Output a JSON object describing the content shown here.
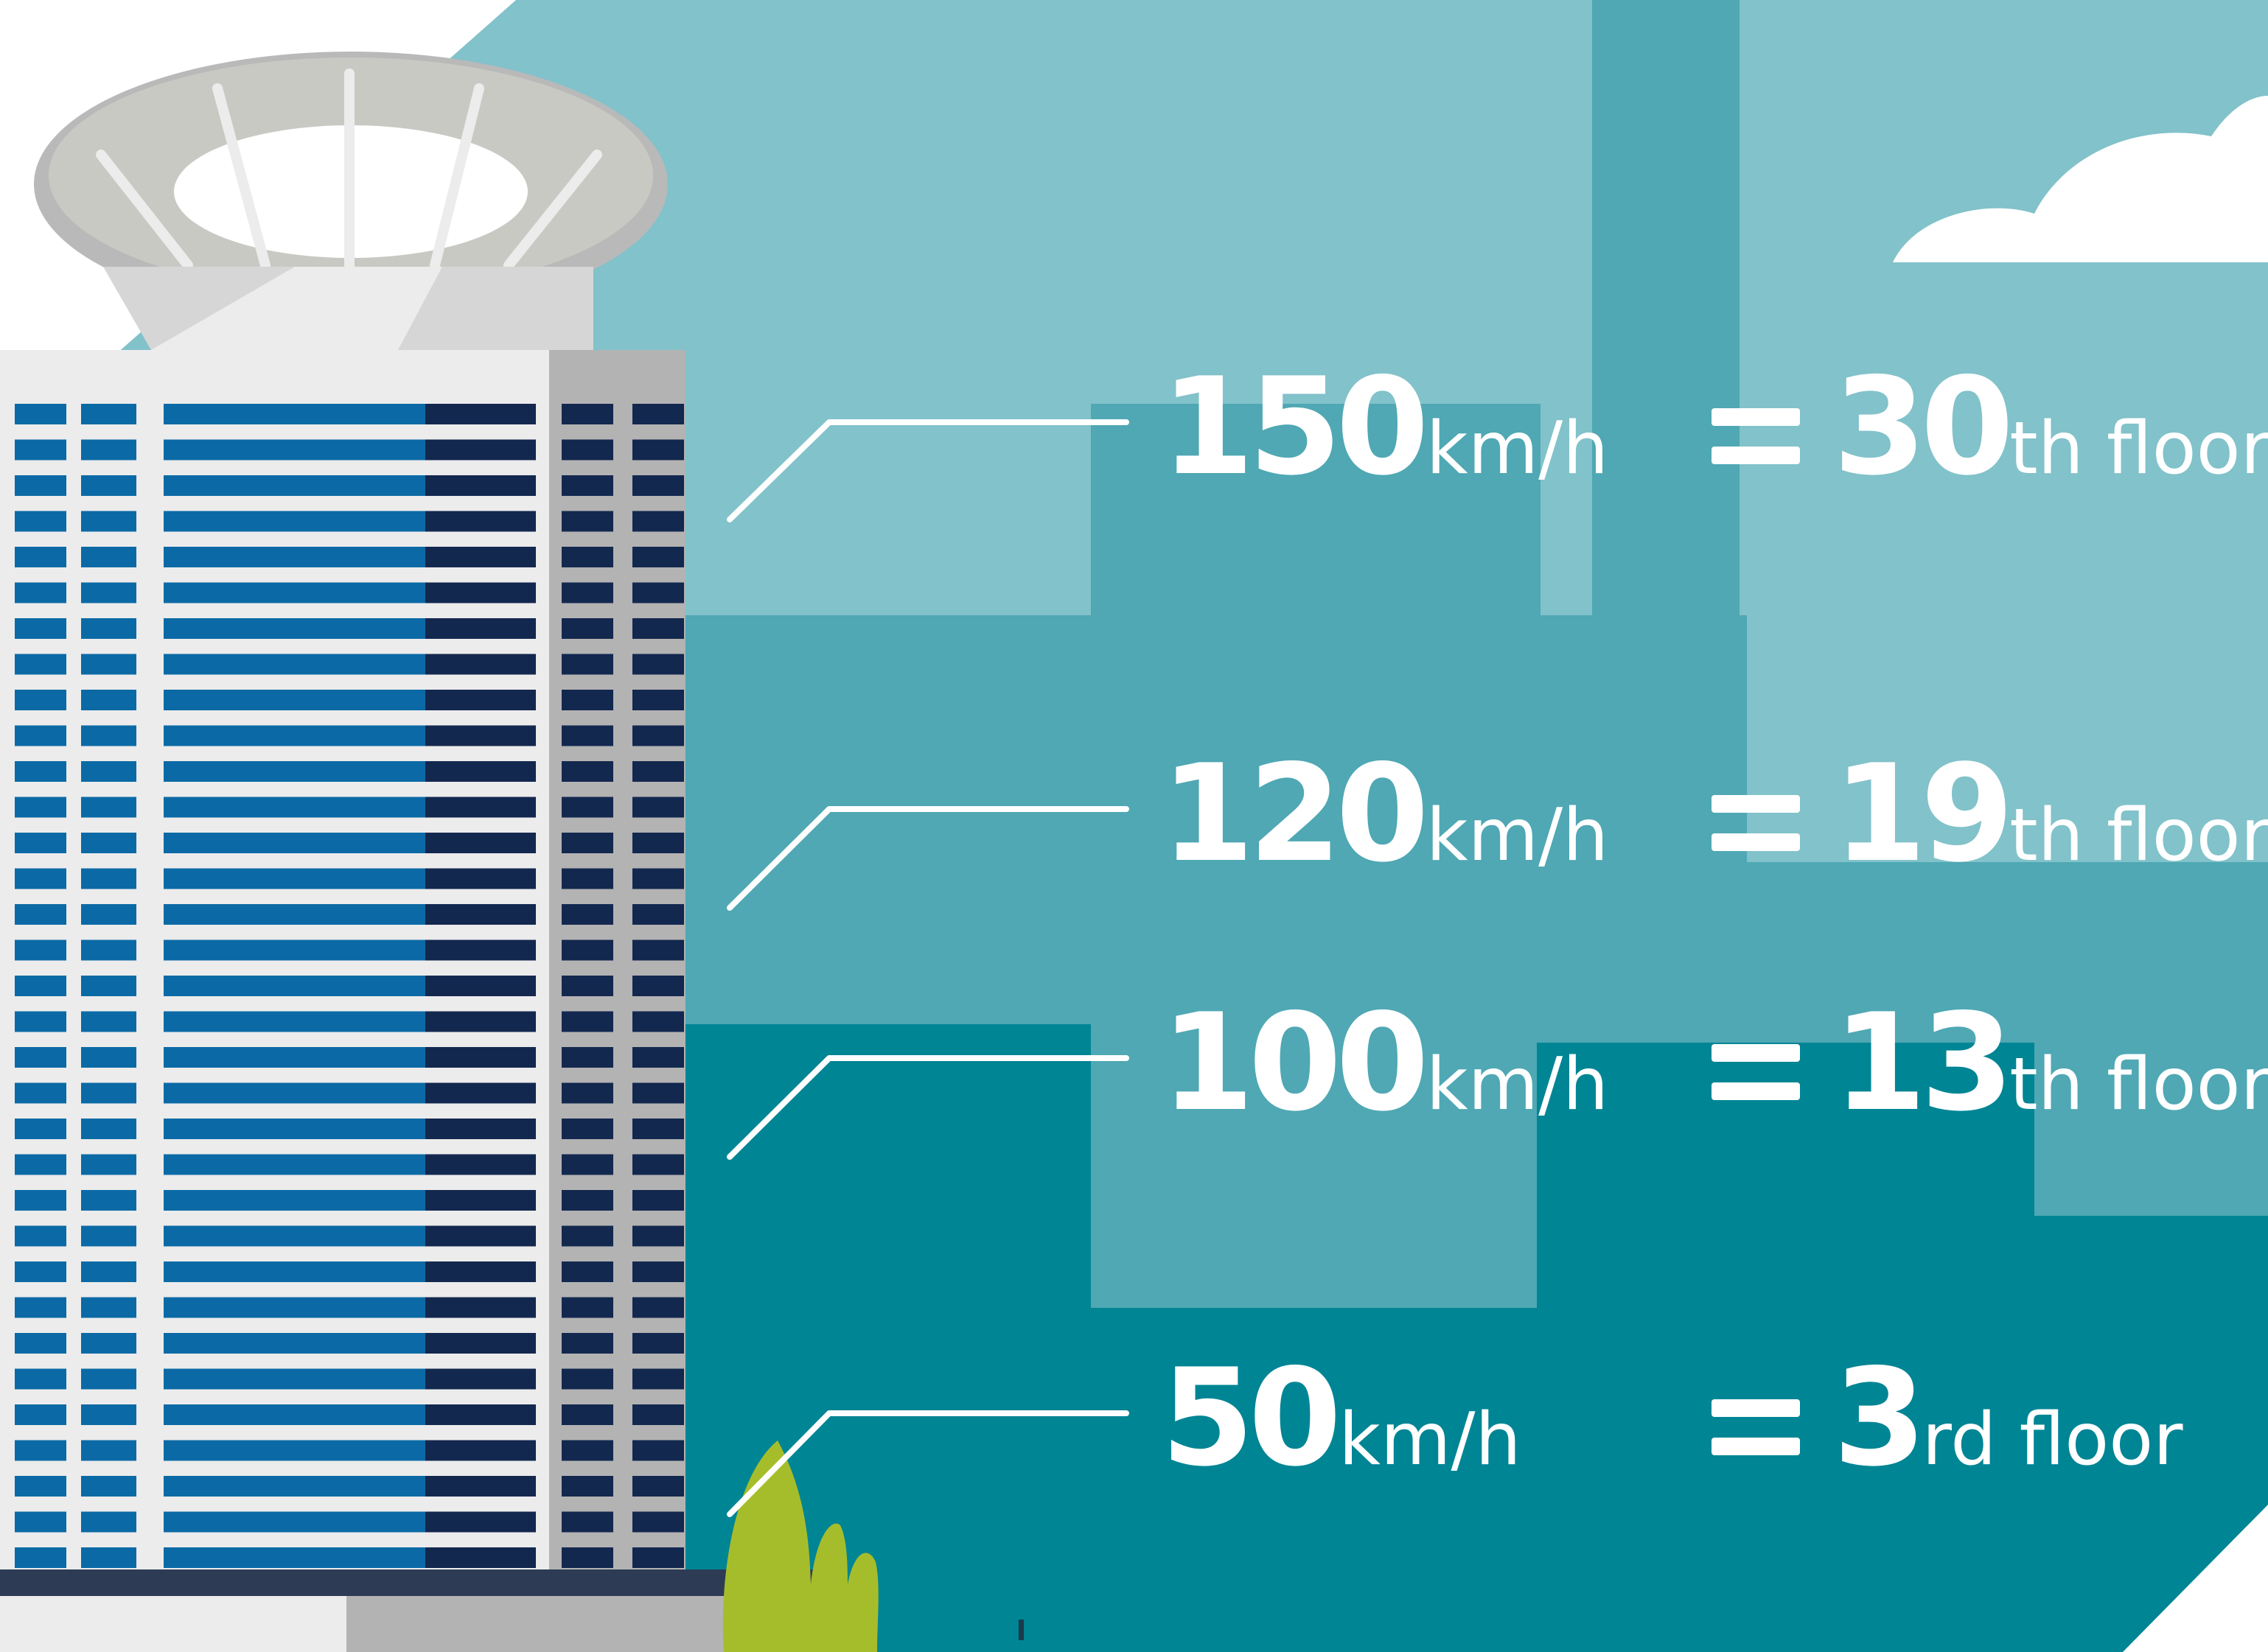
{
  "colors": {
    "sky_light": "#82c2ca",
    "sky_mid": "#4fa8b4",
    "sea_dark": "#008594",
    "tower_glass_light": "#0b6aa6",
    "tower_glass_dark": "#13284f",
    "tower_frame": "#ececec",
    "tower_shadow": "#b3b3b3",
    "shrub": "#a6bd2b",
    "text": "#ffffff"
  },
  "rows": [
    {
      "speed": "150",
      "unit": "km/h",
      "equals": "=",
      "floor": "30",
      "suffix": "th floor"
    },
    {
      "speed": "120",
      "unit": "km/h",
      "equals": "=",
      "floor": "19",
      "suffix": "th floor"
    },
    {
      "speed": "100",
      "unit": "km/h",
      "equals": "=",
      "floor": "13",
      "suffix": "th floor"
    },
    {
      "speed": "50",
      "unit": "km/h",
      "equals": "=",
      "floor": "3",
      "suffix": "rd floor"
    }
  ]
}
